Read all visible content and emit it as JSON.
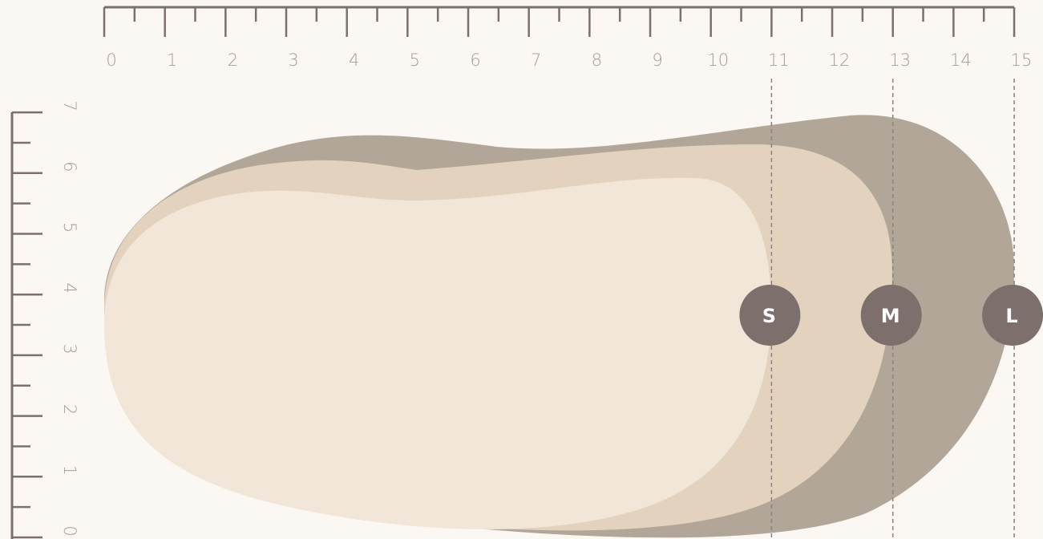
{
  "colors": {
    "background": "#fbf8f3",
    "ruler": "#7d6f6b",
    "tick_label": "#a39c97",
    "large": "#b2a698",
    "medium": "#e2d2be",
    "small": "#f1e6d7",
    "badge": "#7d6f6b",
    "guide": "#8c817d"
  },
  "horizontal_ruler": {
    "labels": [
      "0",
      "1",
      "2",
      "3",
      "4",
      "5",
      "6",
      "7",
      "8",
      "9",
      "10",
      "11",
      "12",
      "13",
      "14",
      "15"
    ]
  },
  "vertical_ruler": {
    "labels": [
      "0",
      "1",
      "2",
      "3",
      "4",
      "5",
      "6",
      "7"
    ]
  },
  "sizes": [
    {
      "label": "S",
      "length": 11
    },
    {
      "label": "M",
      "length": 13
    },
    {
      "label": "L",
      "length": 15
    }
  ]
}
